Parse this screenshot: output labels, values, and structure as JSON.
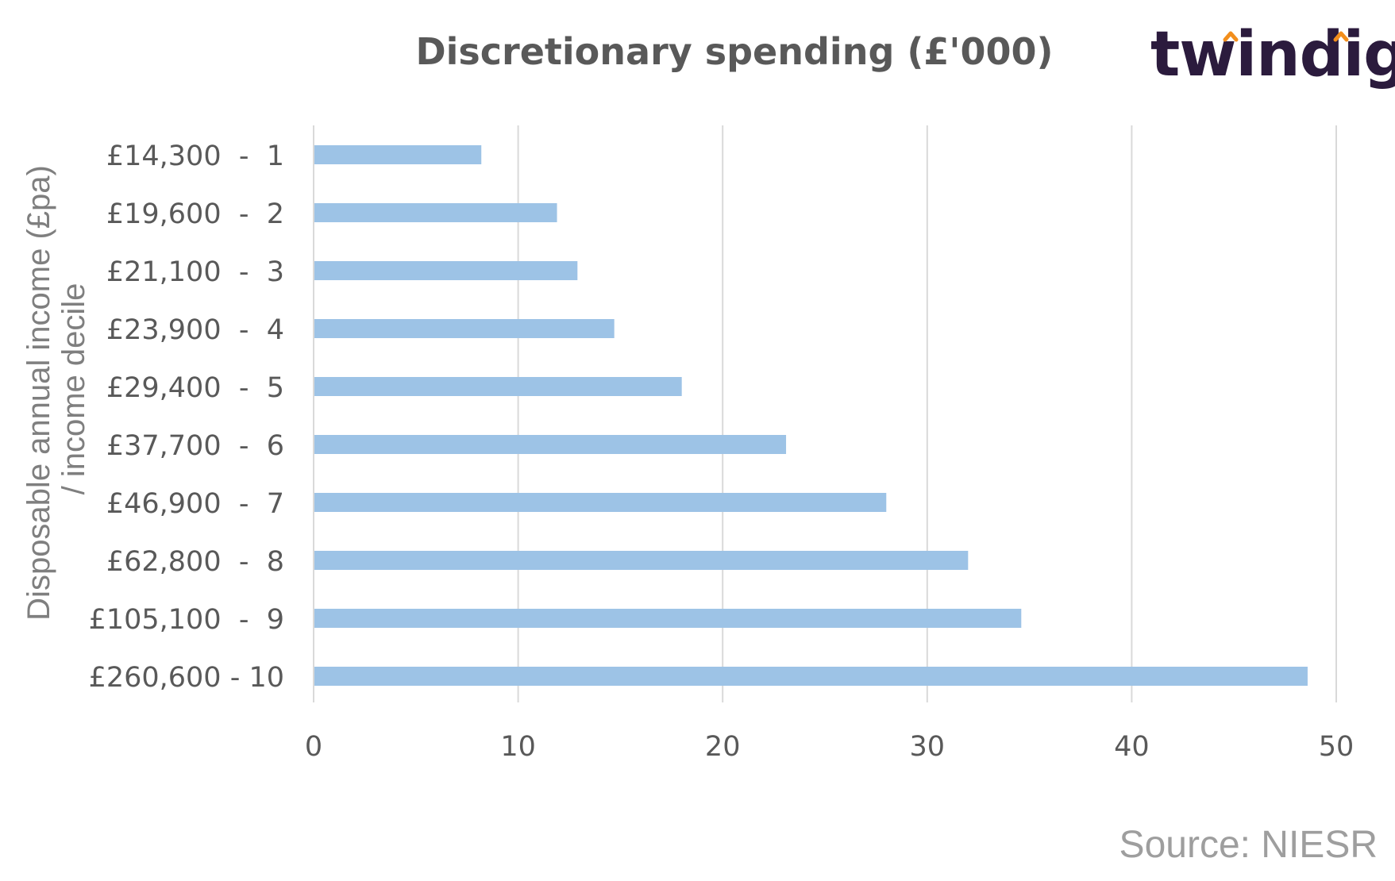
{
  "chart_data": {
    "type": "bar",
    "orientation": "horizontal",
    "title": "Discretionary spending (£'000)",
    "ylabel": "Disposable annual income (£pa) / income decile",
    "ylabel_lines": [
      "Disposable annual income (£pa)",
      "/ income decile"
    ],
    "categories": [
      "£14,300  -  1",
      "£19,600  -  2",
      "£21,100  -  3",
      "£23,900  -  4",
      "£29,400  -  5",
      "£37,700  -  6",
      "£46,900  -  7",
      "£62,800  -  8",
      "£105,100  -  9",
      "£260,600 - 10"
    ],
    "values": [
      8.2,
      11.9,
      12.9,
      14.7,
      18.0,
      23.1,
      28.0,
      32.0,
      34.6,
      48.6
    ],
    "xlim": [
      0,
      50
    ],
    "xticks": [
      0,
      10,
      20,
      30,
      40,
      50
    ],
    "grid": true,
    "bar_color": "#9dc3e6",
    "grid_color": "#d9d9d9"
  },
  "logo": {
    "text": "twindig",
    "accent_color": "#f28e1c",
    "text_color": "#2b1b3d"
  },
  "source": "Source: NIESR"
}
